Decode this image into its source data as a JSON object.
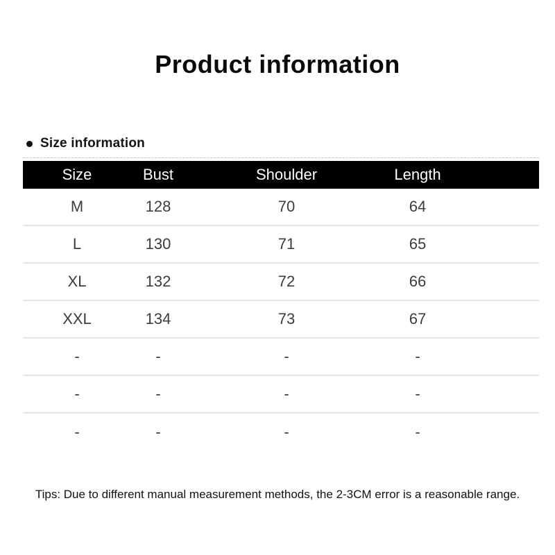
{
  "page": {
    "title": "Product information",
    "section_label": "Size information",
    "bullet_icon": "circle-bullet",
    "tip": "Tips: Due to different manual measurement methods, the 2-3CM error is a reasonable range."
  },
  "colors": {
    "header_bg": "#000000",
    "header_text": "#ffffff",
    "row_text": "#3c3c3c",
    "divider": "#e4e4e4",
    "background": "#ffffff"
  },
  "table": {
    "headers": [
      "Size",
      "Bust",
      "Shoulder",
      "Length"
    ],
    "rows": [
      [
        "M",
        "128",
        "70",
        "64"
      ],
      [
        "L",
        "130",
        "71",
        "65"
      ],
      [
        "XL",
        "132",
        "72",
        "66"
      ],
      [
        "XXL",
        "134",
        "73",
        "67"
      ],
      [
        "-",
        "-",
        "-",
        "-"
      ],
      [
        "-",
        "-",
        "-",
        "-"
      ],
      [
        "-",
        "-",
        "-",
        "-"
      ]
    ]
  }
}
